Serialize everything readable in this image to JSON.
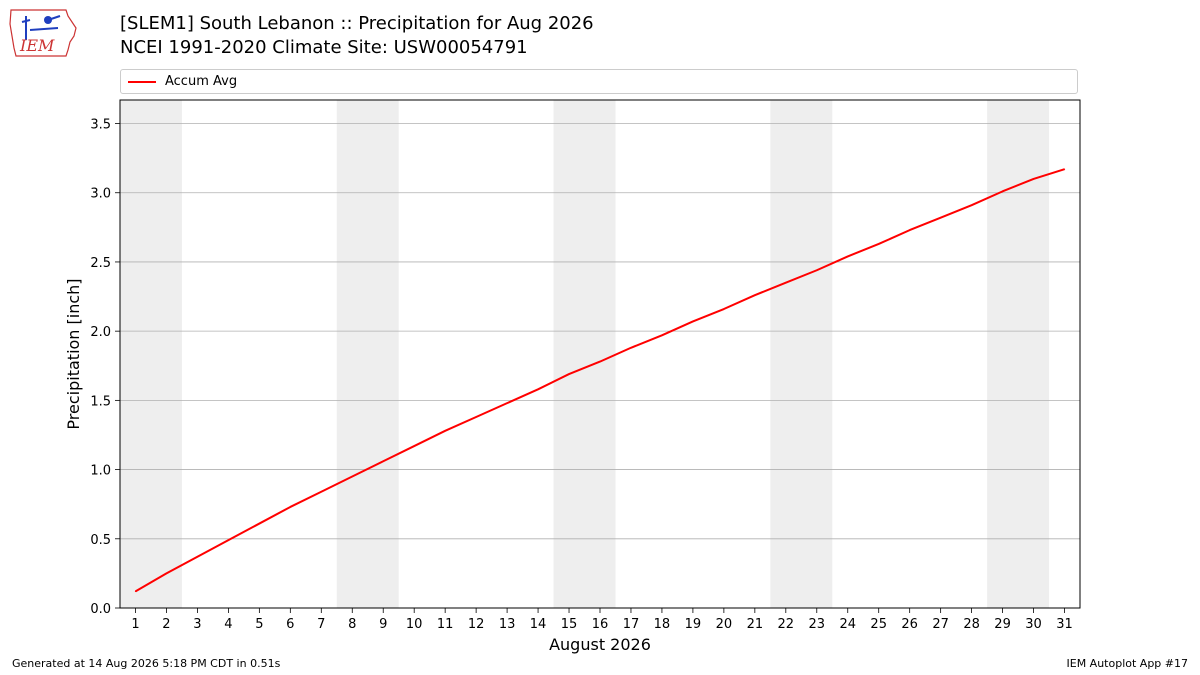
{
  "header": {
    "title_line1": "[SLEM1] South Lebanon :: Precipitation for Aug 2026",
    "title_line2": "NCEI 1991-2020 Climate Site: USW00054791",
    "logo_text": "IEM"
  },
  "footer": {
    "left": "Generated at 14 Aug 2026 5:18 PM CDT in 0.51s",
    "right": "IEM Autoplot App #17"
  },
  "chart_data": {
    "type": "line",
    "xlabel": "August 2026",
    "ylabel": "Precipitation [inch]",
    "xlim": [
      0.5,
      31.5
    ],
    "ylim": [
      0,
      3.67
    ],
    "yticks": [
      0.0,
      0.5,
      1.0,
      1.5,
      2.0,
      2.5,
      3.0,
      3.5
    ],
    "ytick_labels": [
      "0.0",
      "0.5",
      "1.0",
      "1.5",
      "2.0",
      "2.5",
      "3.0",
      "3.5"
    ],
    "x": [
      1,
      2,
      3,
      4,
      5,
      6,
      7,
      8,
      9,
      10,
      11,
      12,
      13,
      14,
      15,
      16,
      17,
      18,
      19,
      20,
      21,
      22,
      23,
      24,
      25,
      26,
      27,
      28,
      29,
      30,
      31
    ],
    "grid": "horizontal",
    "legend_position": "top",
    "weekend_shading": [
      [
        1,
        2
      ],
      [
        8,
        9
      ],
      [
        15,
        16
      ],
      [
        22,
        23
      ],
      [
        29,
        30
      ]
    ],
    "series": [
      {
        "name": "Accum Avg",
        "color": "#ff0000",
        "values": [
          0.12,
          0.25,
          0.37,
          0.49,
          0.61,
          0.73,
          0.84,
          0.95,
          1.06,
          1.17,
          1.28,
          1.38,
          1.48,
          1.58,
          1.69,
          1.78,
          1.88,
          1.97,
          2.07,
          2.16,
          2.26,
          2.35,
          2.44,
          2.54,
          2.63,
          2.73,
          2.82,
          2.91,
          3.01,
          3.1,
          3.17
        ]
      }
    ]
  }
}
